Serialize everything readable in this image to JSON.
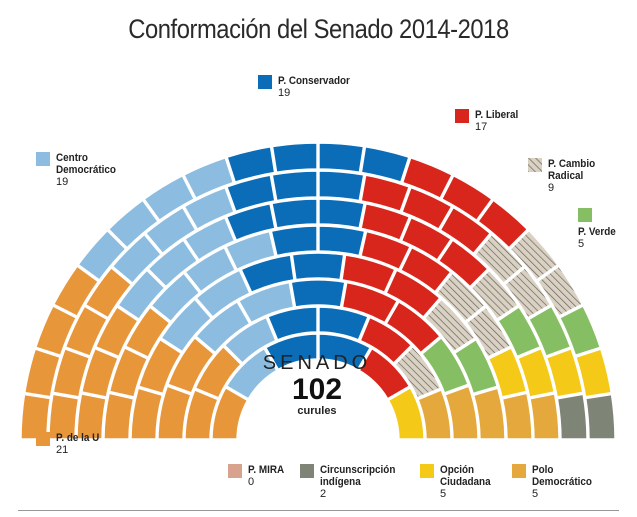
{
  "title": "Conformación del Senado 2014-2018",
  "center": {
    "label": "SENADO",
    "total": "102",
    "unit": "curules"
  },
  "chart_data": {
    "type": "parliament",
    "title": "Conformación del Senado 2014-2018",
    "total_seats": 102,
    "parties": [
      {
        "name": "P. de la U",
        "seats": 21,
        "color": "#E8963A",
        "pattern": "solid"
      },
      {
        "name": "Centro Democrático",
        "seats": 19,
        "color": "#8CBDE0",
        "pattern": "solid"
      },
      {
        "name": "P. Conservador",
        "seats": 19,
        "color": "#0B6DB8",
        "pattern": "solid"
      },
      {
        "name": "P. Liberal",
        "seats": 17,
        "color": "#D9261C",
        "pattern": "solid"
      },
      {
        "name": "P. Cambio Radical",
        "seats": 9,
        "color": "#D9D2C4",
        "pattern": "hatch"
      },
      {
        "name": "P. Verde",
        "seats": 5,
        "color": "#86BF63",
        "pattern": "solid"
      },
      {
        "name": "Opción Ciudadana",
        "seats": 5,
        "color": "#F4C918",
        "pattern": "solid"
      },
      {
        "name": "Polo Democrático",
        "seats": 5,
        "color": "#E4A83C",
        "pattern": "solid"
      },
      {
        "name": "Circunscripción indígena",
        "seats": 2,
        "color": "#7F8576",
        "pattern": "solid"
      },
      {
        "name": "P. MIRA",
        "seats": 0,
        "color": "#D7A38E",
        "pattern": "solid"
      }
    ]
  },
  "legend": [
    {
      "key": "P. de la U",
      "label": "P. de la U",
      "value": "21",
      "color": "#E8963A"
    },
    {
      "key": "Centro Democrático",
      "label": "Centro Democrático",
      "value": "19",
      "color": "#8CBDE0"
    },
    {
      "key": "P. Conservador",
      "label": "P. Conservador",
      "value": "19",
      "color": "#0B6DB8"
    },
    {
      "key": "P. Liberal",
      "label": "P. Liberal",
      "value": "17",
      "color": "#D9261C"
    },
    {
      "key": "P. Cambio Radical",
      "label": "P. Cambio Radical",
      "value": "9",
      "color": "#D9D2C4"
    },
    {
      "key": "P. Verde",
      "label": "P. Verde",
      "value": "5",
      "color": "#86BF63"
    },
    {
      "key": "P. MIRA",
      "label": "P. MIRA",
      "value": "0",
      "color": "#D7A38E"
    },
    {
      "key": "Circunscripción indígena",
      "label": "Circunscripción indígena",
      "value": "2",
      "color": "#7F8576"
    },
    {
      "key": "Opción Ciudadana",
      "label": "Opción Ciudadana",
      "value": "5",
      "color": "#F4C918"
    },
    {
      "key": "Polo Democrático",
      "label": "Polo Democrático",
      "value": "5",
      "color": "#E4A83C"
    }
  ]
}
